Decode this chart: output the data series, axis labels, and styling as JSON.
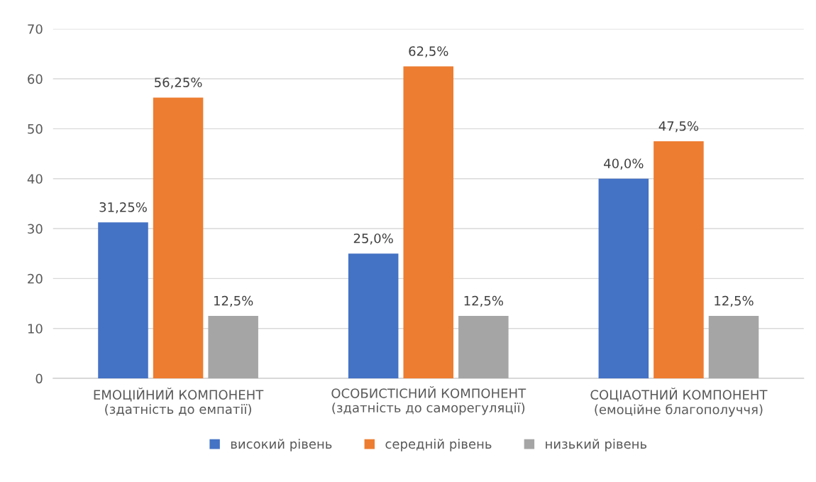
{
  "chart_data": {
    "type": "bar",
    "categories": [
      "ЕМОЦІЙНИЙ КОМПОНЕНТ\n(здатність до емпатії)",
      "ОСОБИСТІСНИЙ КОМПОНЕНТ\n(здатність до саморегуляції)",
      "СОЦІАОТНИЙ КОМПОНЕНТ\n(емоційне благополуччя)"
    ],
    "series": [
      {
        "name": "високий рівень",
        "color": "#4472c4",
        "values": [
          31.25,
          25.0,
          40.0
        ],
        "value_labels": [
          "31,25%",
          "25,0%",
          "40,0%"
        ]
      },
      {
        "name": "середній рівень",
        "color": "#ed7d31",
        "values": [
          56.25,
          62.5,
          47.5
        ],
        "value_labels": [
          "56,25%",
          "62,5%",
          "47,5%"
        ]
      },
      {
        "name": "низький рівень",
        "color": "#a5a5a5",
        "values": [
          12.5,
          12.5,
          12.5
        ],
        "value_labels": [
          "12,5%",
          "12,5%",
          "12,5%"
        ]
      }
    ],
    "ylim": [
      0,
      70
    ],
    "yticks": [
      0,
      10,
      20,
      30,
      40,
      50,
      60,
      70
    ],
    "grid": "y",
    "legend": "bottom"
  }
}
